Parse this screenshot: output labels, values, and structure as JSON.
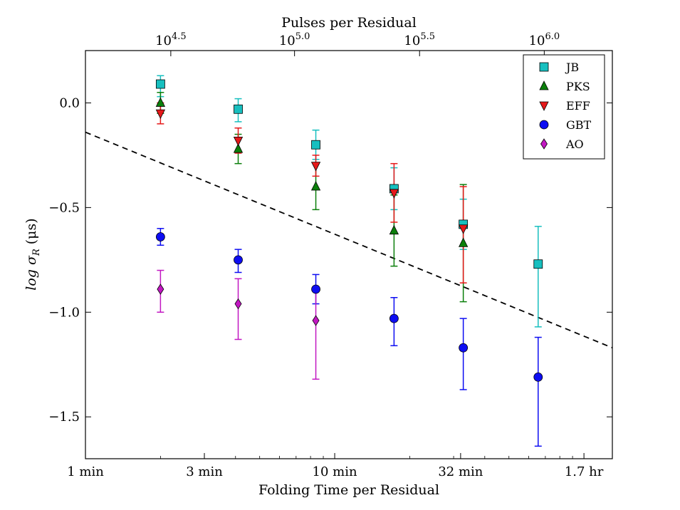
{
  "chart_data": {
    "type": "scatter",
    "title": "",
    "xlabel": "Folding Time per Residual",
    "xlabel_top": "Pulses per Residual",
    "ylabel": "log σ_R (μs)",
    "ylabel_main": "log σ",
    "ylabel_sub": "R",
    "ylabel_unit": "(μs)",
    "x_scale": "log",
    "x_unit": "minutes",
    "xlim": [
      1,
      130
    ],
    "ylim": [
      -1.7,
      0.25
    ],
    "x_ticks": [
      {
        "value": 1,
        "label": "1 min"
      },
      {
        "value": 3,
        "label": "3 min"
      },
      {
        "value": 10,
        "label": "10 min"
      },
      {
        "value": 32,
        "label": "32 min"
      },
      {
        "value": 100,
        "label": "1.7 hr"
      }
    ],
    "top_ticks": [
      {
        "value": 2.2,
        "base": "10",
        "exp": "4.5"
      },
      {
        "value": 6.9,
        "base": "10",
        "exp": "5.0"
      },
      {
        "value": 21.9,
        "base": "10",
        "exp": "5.5"
      },
      {
        "value": 69.3,
        "base": "10",
        "exp": "6.0"
      }
    ],
    "y_ticks": [
      {
        "value": 0.0,
        "label": "0.0"
      },
      {
        "value": -0.5,
        "label": "−0.5"
      },
      {
        "value": -1.0,
        "label": "−1.0"
      },
      {
        "value": -1.5,
        "label": "−1.5"
      }
    ],
    "grid": false,
    "legend_position": "top-right",
    "series": [
      {
        "name": "JB",
        "marker": "square",
        "color": "#17bfbf",
        "x": [
          2.0,
          4.1,
          8.4,
          17.3,
          32.8,
          65.5
        ],
        "y": [
          0.09,
          -0.03,
          -0.2,
          -0.41,
          -0.58,
          -0.77
        ],
        "yerr_low": [
          0.06,
          0.06,
          0.07,
          0.1,
          0.12,
          0.3
        ],
        "yerr_high": [
          0.04,
          0.05,
          0.07,
          0.1,
          0.12,
          0.18
        ]
      },
      {
        "name": "PKS",
        "marker": "triangle-up",
        "color": "#0b7f0b",
        "x": [
          2.0,
          4.1,
          8.4,
          17.3,
          32.8
        ],
        "y": [
          0.0,
          -0.22,
          -0.4,
          -0.61,
          -0.67
        ],
        "yerr_low": [
          0.05,
          0.07,
          0.11,
          0.17,
          0.28
        ],
        "yerr_high": [
          0.05,
          0.07,
          0.11,
          0.17,
          0.28
        ]
      },
      {
        "name": "EFF",
        "marker": "triangle-down",
        "color": "#e6191a",
        "x": [
          2.0,
          4.1,
          8.4,
          17.3,
          32.8
        ],
        "y": [
          -0.05,
          -0.18,
          -0.3,
          -0.43,
          -0.6
        ],
        "yerr_low": [
          0.05,
          0.06,
          0.05,
          0.14,
          0.26
        ],
        "yerr_high": [
          0.05,
          0.06,
          0.05,
          0.14,
          0.2
        ]
      },
      {
        "name": "GBT",
        "marker": "circle",
        "color": "#0d0df2",
        "x": [
          2.0,
          4.1,
          8.4,
          17.3,
          32.8,
          65.5
        ],
        "y": [
          -0.64,
          -0.75,
          -0.89,
          -1.03,
          -1.17,
          -1.31
        ],
        "yerr_low": [
          0.04,
          0.06,
          0.07,
          0.13,
          0.2,
          0.33
        ],
        "yerr_high": [
          0.04,
          0.05,
          0.07,
          0.1,
          0.14,
          0.19
        ]
      },
      {
        "name": "AO",
        "marker": "diamond",
        "color": "#c217c2",
        "x": [
          2.0,
          4.1,
          8.4
        ],
        "y": [
          -0.89,
          -0.96,
          -1.04
        ],
        "yerr_low": [
          0.11,
          0.17,
          0.28
        ],
        "yerr_high": [
          0.09,
          0.12,
          0.16
        ]
      }
    ],
    "reference_line": {
      "style": "dashed",
      "color": "#000000",
      "x": [
        1,
        130
      ],
      "y": [
        -0.14,
        -1.17
      ]
    }
  }
}
